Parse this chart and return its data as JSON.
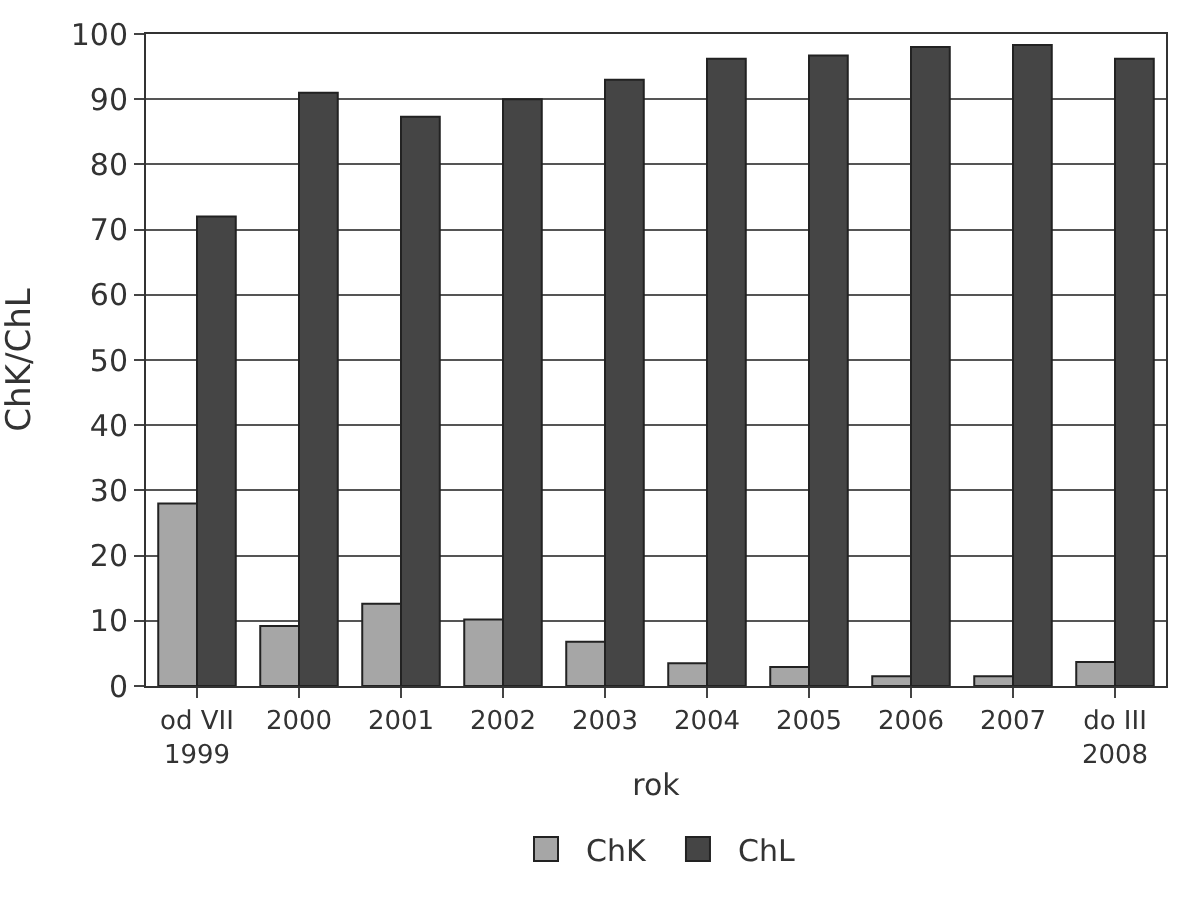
{
  "chart_data": {
    "type": "bar",
    "xlabel": "rok",
    "ylabel": "ChK/ChL",
    "categories": [
      "od VII\n1999",
      "2000",
      "2001",
      "2002",
      "2003",
      "2004",
      "2005",
      "2006",
      "2007",
      "do III\n2008"
    ],
    "series": [
      {
        "name": "ChK",
        "color": "#a6a6a6",
        "values": [
          28,
          9.2,
          12.6,
          10.2,
          6.8,
          3.5,
          2.9,
          1.5,
          1.5,
          3.7
        ]
      },
      {
        "name": "ChL",
        "color": "#454545",
        "values": [
          72,
          91,
          87.3,
          90,
          93,
          96.2,
          96.7,
          98,
          98.3,
          96.2
        ]
      }
    ],
    "ylim": [
      0,
      100
    ],
    "yticks": [
      0,
      10,
      20,
      30,
      40,
      50,
      60,
      70,
      80,
      90,
      100
    ],
    "grid": "y",
    "legend": "bottom"
  }
}
